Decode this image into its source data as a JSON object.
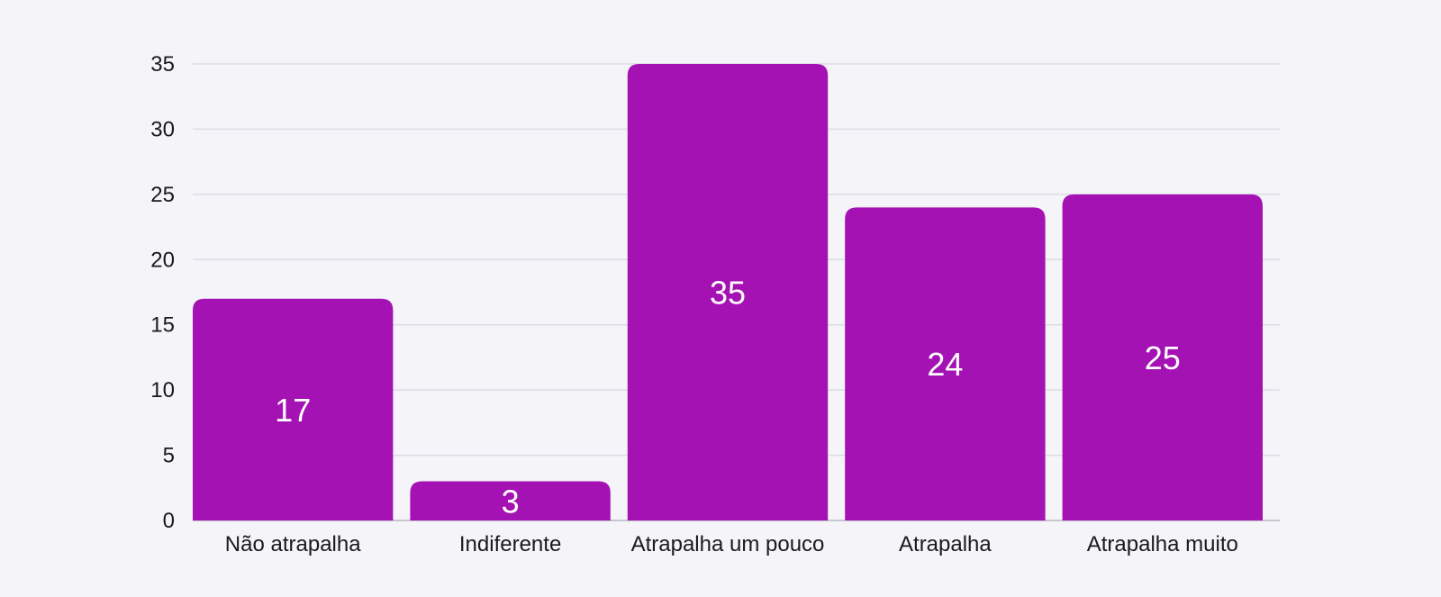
{
  "chart_data": {
    "type": "bar",
    "title": "",
    "xlabel": "",
    "ylabel": "",
    "categories": [
      "Não atrapalha",
      "Indiferente",
      "Atrapalha um pouco",
      "Atrapalha",
      "Atrapalha muito"
    ],
    "values": [
      17,
      3,
      35,
      24,
      25
    ],
    "ylim": [
      0,
      35
    ],
    "yticks": [
      0,
      5,
      10,
      15,
      20,
      25,
      30,
      35
    ],
    "grid": true,
    "legend": "none",
    "data_labels": true,
    "colors": {
      "bar": "#a512b4",
      "bar_label": "#ffffff",
      "grid": "#dcdce4",
      "background": "#f4f4f9",
      "text": "#1a1a1a"
    }
  }
}
